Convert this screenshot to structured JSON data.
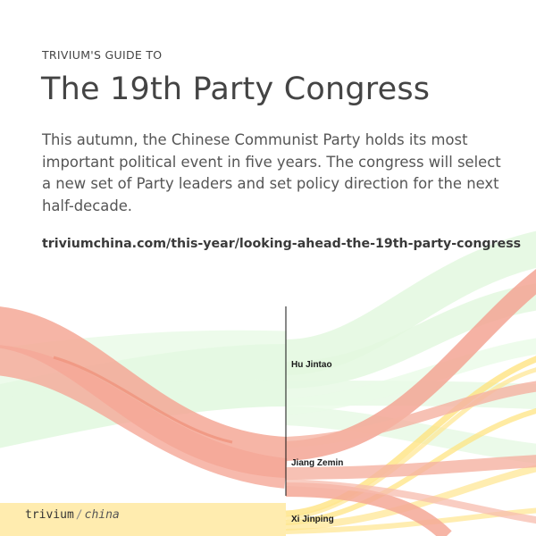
{
  "header": {
    "overline": "TRIVIUM'S GUIDE TO",
    "title": "The 19th Party Congress",
    "description": "This autumn, the Chinese Communist Party holds its most important political event in five years. The congress will select a new set of Party leaders and set policy direction for the next half-decade.",
    "url": "triviumchina.com/this-year/looking-ahead-the-19th-party-congress"
  },
  "brand": {
    "left": "trivium",
    "right": "china"
  },
  "diagram": {
    "leaders": [
      {
        "name": "Hu Jintao",
        "color": "#9be39b"
      },
      {
        "name": "Jiang Zemin",
        "color": "#f07a60"
      },
      {
        "name": "Xi Jinping",
        "color": "#ffd54a"
      }
    ]
  }
}
